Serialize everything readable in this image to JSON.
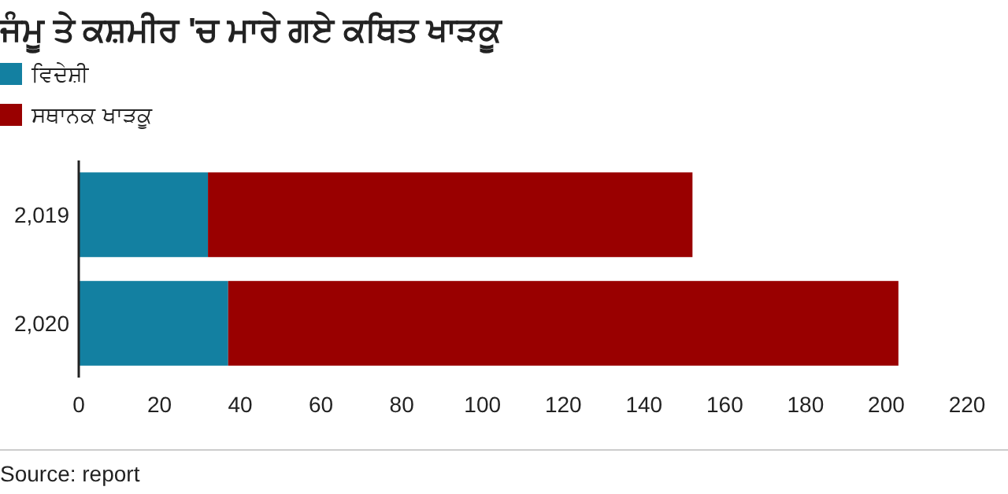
{
  "chart_data": {
    "type": "bar",
    "orientation": "horizontal",
    "stacked": true,
    "title": "ਜੰਮੂ ਤੇ ਕਸ਼ਮੀਰ 'ਚ ਮਾਰੇ ਗਏ ਕਥਿਤ ਖਾੜਕੂ",
    "categories": [
      "2,019",
      "2,020"
    ],
    "series": [
      {
        "name": "ਵਿਦੇਸ਼ੀ",
        "color": "#1380a1",
        "values": [
          32,
          37
        ]
      },
      {
        "name": "ਸਥਾਨਕ ਖਾੜਕੂ",
        "color": "#990000",
        "values": [
          120,
          166
        ]
      }
    ],
    "xlim": [
      0,
      220
    ],
    "xticks": [
      0,
      20,
      40,
      60,
      80,
      100,
      120,
      140,
      160,
      180,
      200,
      220
    ],
    "grid": false,
    "legend": "top left",
    "annotations": [
      "Source: report"
    ]
  }
}
